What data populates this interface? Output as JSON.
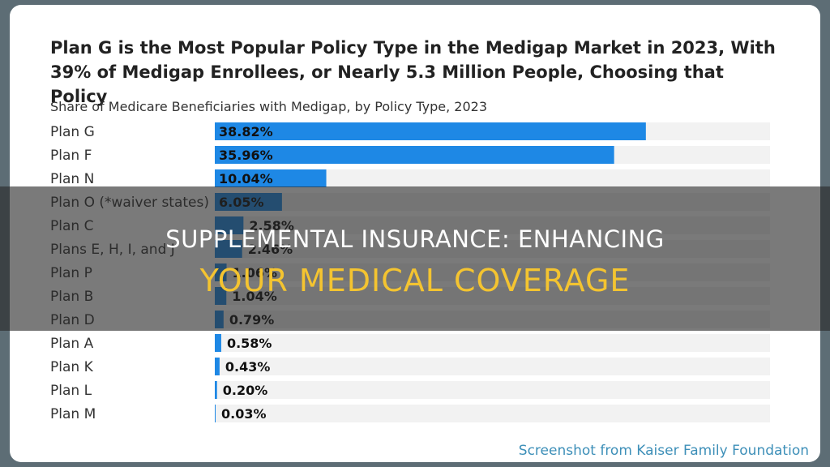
{
  "chart_data": {
    "type": "bar",
    "orientation": "horizontal",
    "title": "Plan G is the Most Popular Policy Type in the Medigap Market in 2023, With 39% of Medigap Enrollees, or Nearly 5.3 Million People, Choosing that Policy",
    "subtitle": "Share of Medicare Beneficiaries with Medigap, by Policy Type, 2023",
    "xlabel": "",
    "ylabel": "",
    "xlim": [
      0,
      50
    ],
    "grid": false,
    "categories": [
      "Plan G",
      "Plan F",
      "Plan N",
      "Plan O (*waiver states)",
      "Plan C",
      "Plans E, H, I, and J",
      "Plan P",
      "Plan B",
      "Plan D",
      "Plan A",
      "Plan K",
      "Plan L",
      "Plan M"
    ],
    "values": [
      38.82,
      35.96,
      10.04,
      6.05,
      2.58,
      2.46,
      1.06,
      1.04,
      0.79,
      0.58,
      0.43,
      0.2,
      0.03
    ],
    "value_labels": [
      "38.82%",
      "35.96%",
      "10.04%",
      "6.05%",
      "2.58%",
      "2.46%",
      "1.06%",
      "1.04%",
      "0.79%",
      "0.58%",
      "0.43%",
      "0.20%",
      "0.03%"
    ],
    "colors": {
      "bar": "#1e88e5",
      "track": "#f2f2f2"
    }
  },
  "credit": "Screenshot from Kaiser Family Foundation",
  "banner": {
    "line1": "SUPPLEMENTAL INSURANCE: ENHANCING",
    "line2": "YOUR MEDICAL COVERAGE",
    "line2_color": "#f4c430"
  }
}
